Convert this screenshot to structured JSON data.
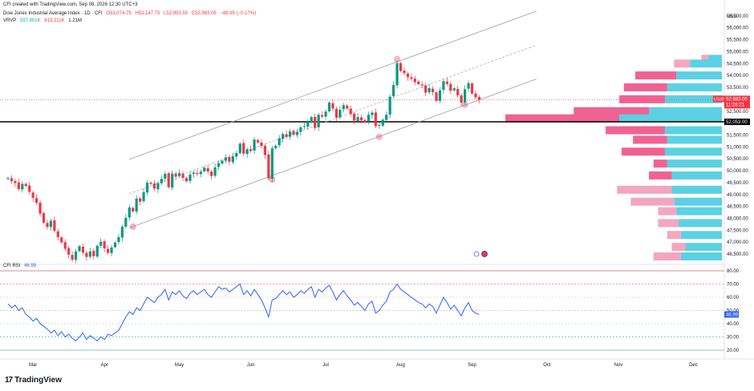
{
  "header": {
    "credit": "CFI created with TradingView.com, Sep 08, 2026 12:30 UTC+3",
    "symbol": "Dow Jones Industrial Average Index · 1D · CFI",
    "ohlc": {
      "o": "O53,074.75",
      "h": "H53,147.75",
      "l": "L52,893.55",
      "c": "C52,983.05",
      "change": "−88.95 (−0.17%)"
    },
    "vrvp": {
      "label": "VRVP",
      "up": "597.801K",
      "down": "613.211K",
      "total": "1.21M"
    }
  },
  "currency": "USD",
  "rsi_label": "CFI RSI",
  "rsi_value": "46.99",
  "price_badge": {
    "symbol": "US30",
    "price": "52,983.05",
    "countdown": "11:28:21"
  },
  "level_badge": "52,053.00",
  "branding": {
    "name": "TradingView"
  },
  "colors": {
    "up": "#089981",
    "down": "#f23645",
    "rsi_line": "#2962ff",
    "vp_up": "#5bd1e3",
    "vp_down": "#f06292",
    "vp_down_light": "#f4a6c0",
    "channel": "#9e9e9e",
    "level": "#000000"
  },
  "chart_data": [
    {
      "type": "candlestick",
      "title": "Dow Jones Industrial Average Index",
      "x_ticks": [
        "Mar",
        "Apr",
        "May",
        "Jun",
        "Jul",
        "Aug",
        "Sep",
        "Oct",
        "Nov",
        "Dec"
      ],
      "y_ticks": [
        "56,500.00",
        "56,000.00",
        "55,500.00",
        "55,000.00",
        "54,500.00",
        "54,000.00",
        "53,500.00",
        "53,000.00",
        "52,500.00",
        "52,000.00",
        "51,500.00",
        "51,000.00",
        "50,500.00",
        "50,000.00",
        "49,500.00",
        "49,000.00",
        "48,500.00",
        "48,000.00",
        "47,500.00",
        "47,000.00",
        "46,500.00"
      ],
      "ylim": [
        46200,
        56900
      ],
      "last_close": 52983.05,
      "horizontal_level": 52053.0,
      "closes": [
        49690,
        49560,
        49480,
        49230,
        49450,
        49360,
        49110,
        48860,
        48650,
        48200,
        47820,
        47640,
        47900,
        47480,
        47210,
        46990,
        46720,
        46480,
        46260,
        46610,
        46830,
        46560,
        46380,
        46610,
        46410,
        46850,
        47020,
        46740,
        46550,
        46780,
        46980,
        47210,
        47650,
        48020,
        48460,
        48290,
        48830,
        48700,
        49100,
        49500,
        49450,
        49250,
        49480,
        49660,
        49870,
        49310,
        49880,
        49760,
        49900,
        49700,
        49560,
        49840,
        49920,
        49860,
        49960,
        50130,
        49970,
        49780,
        50140,
        50320,
        50420,
        50560,
        50380,
        50600,
        50740,
        51140,
        50720,
        50900,
        50830,
        51310,
        51190,
        51040,
        50660,
        49680,
        50940,
        51050,
        51360,
        51540,
        51420,
        51650,
        51510,
        51630,
        51820,
        51870,
        52050,
        52250,
        51800,
        52350,
        52270,
        52480,
        52860,
        52610,
        52230,
        52560,
        52750,
        52610,
        52380,
        52110,
        52250,
        52120,
        52040,
        52350,
        52440,
        51870,
        51920,
        52140,
        52350,
        53110,
        53600,
        54520,
        54190,
        54100,
        53930,
        53860,
        53720,
        53640,
        53580,
        53280,
        53470,
        53300,
        52930,
        53370,
        53760,
        53640,
        53360,
        53460,
        53170,
        52860,
        53420,
        53680,
        53240,
        53080,
        52983
      ]
    },
    {
      "type": "volume_profile",
      "price_levels": [
        54700,
        54500,
        54000,
        53500,
        53000,
        52500,
        52200,
        51700,
        51300,
        50800,
        50300,
        49800,
        49200,
        48700,
        48300,
        47800,
        47300,
        46800,
        46400
      ],
      "up_volume": [
        6,
        14,
        20,
        24,
        25,
        32,
        45,
        25,
        24,
        25,
        24,
        22,
        22,
        21,
        20,
        19,
        18,
        16,
        18
      ],
      "down_volume": [
        3,
        7,
        18,
        19,
        20,
        33,
        50,
        26,
        15,
        19,
        6,
        10,
        24,
        19,
        8,
        9,
        6,
        6,
        12
      ],
      "down_light_levels": [
        54700,
        54500,
        49200,
        48700,
        48300,
        47800,
        47300,
        46800,
        46400
      ]
    },
    {
      "type": "line",
      "title": "CFI RSI",
      "y_ticks": [
        "80.00",
        "70.00",
        "60.00",
        "50.00",
        "40.00",
        "30.00",
        "20.00"
      ],
      "ylim": [
        20,
        80
      ],
      "bands": [
        30,
        50,
        70
      ],
      "values": [
        55,
        52,
        54,
        50,
        52,
        47,
        45,
        42,
        44,
        40,
        38,
        36,
        33,
        35,
        31,
        34,
        30,
        32,
        29,
        27,
        30,
        33,
        28,
        31,
        29,
        27,
        30,
        28,
        32,
        31,
        33,
        35,
        40,
        45,
        49,
        47,
        52,
        50,
        55,
        60,
        58,
        56,
        60,
        62,
        66,
        58,
        64,
        62,
        65,
        61,
        59,
        63,
        65,
        62,
        64,
        66,
        62,
        60,
        64,
        68,
        66,
        67,
        64,
        66,
        68,
        70,
        62,
        65,
        61,
        66,
        62,
        58,
        52,
        45,
        58,
        59,
        62,
        65,
        62,
        64,
        60,
        62,
        65,
        63,
        66,
        68,
        60,
        66,
        64,
        67,
        69,
        64,
        58,
        62,
        65,
        61,
        58,
        54,
        56,
        53,
        50,
        55,
        57,
        48,
        50,
        54,
        57,
        64,
        66,
        70,
        66,
        64,
        62,
        60,
        58,
        56,
        55,
        52,
        55,
        53,
        48,
        54,
        60,
        56,
        51,
        54,
        50,
        46,
        52,
        56,
        50,
        48,
        46.99
      ]
    }
  ]
}
